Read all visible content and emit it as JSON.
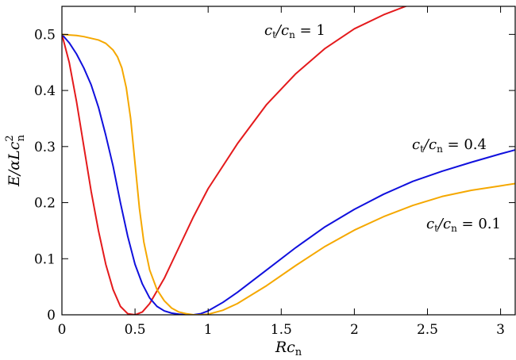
{
  "chart_data": {
    "type": "line",
    "xlabel_main": "R",
    "xlabel_sub": "c",
    "xlabel_subscript": "n",
    "ylabel_parts": {
      "lead": "E/αLc",
      "sup": "2",
      "sub": "n"
    },
    "xlim": [
      0,
      3.1
    ],
    "ylim": [
      0,
      0.55
    ],
    "xticks": [
      0,
      0.5,
      1,
      1.5,
      2,
      2.5,
      3
    ],
    "xtick_labels": [
      "0",
      "0.5",
      "1",
      "1.5",
      "2",
      "2.5",
      "3"
    ],
    "yticks": [
      0,
      0.1,
      0.2,
      0.3,
      0.4,
      0.5
    ],
    "ytick_labels": [
      "0",
      "0.1",
      "0.2",
      "0.3",
      "0.4",
      "0.5"
    ],
    "grid": false,
    "series": [
      {
        "name": "ct/cn = 1",
        "color": "#e41a1c",
        "x": [
          0,
          0.05,
          0.1,
          0.15,
          0.2,
          0.25,
          0.3,
          0.35,
          0.4,
          0.45,
          0.5,
          0.55,
          0.6,
          0.7,
          0.8,
          0.9,
          1.0,
          1.2,
          1.4,
          1.6,
          1.8,
          2.0,
          2.2,
          2.4,
          2.6
        ],
        "y": [
          0.5,
          0.45,
          0.38,
          0.3,
          0.22,
          0.15,
          0.09,
          0.045,
          0.015,
          0.002,
          0.0,
          0.005,
          0.02,
          0.065,
          0.12,
          0.175,
          0.225,
          0.305,
          0.375,
          0.43,
          0.475,
          0.51,
          0.535,
          0.555,
          0.57
        ]
      },
      {
        "name": "ct/cn = 0.4",
        "color": "#1010dd",
        "x": [
          0,
          0.05,
          0.1,
          0.15,
          0.2,
          0.25,
          0.3,
          0.35,
          0.4,
          0.45,
          0.5,
          0.55,
          0.6,
          0.65,
          0.7,
          0.75,
          0.8,
          0.85,
          0.9,
          0.95,
          1.0,
          1.1,
          1.2,
          1.4,
          1.6,
          1.8,
          2.0,
          2.2,
          2.4,
          2.6,
          2.8,
          3.0,
          3.1
        ],
        "y": [
          0.5,
          0.485,
          0.465,
          0.44,
          0.41,
          0.37,
          0.32,
          0.265,
          0.2,
          0.14,
          0.09,
          0.055,
          0.03,
          0.015,
          0.007,
          0.003,
          0.001,
          0.0,
          0.0,
          0.002,
          0.007,
          0.022,
          0.04,
          0.08,
          0.12,
          0.157,
          0.188,
          0.215,
          0.238,
          0.256,
          0.272,
          0.287,
          0.294
        ]
      },
      {
        "name": "ct/cn = 0.1",
        "color": "#f5a800",
        "x": [
          0,
          0.05,
          0.1,
          0.15,
          0.2,
          0.25,
          0.3,
          0.35,
          0.38,
          0.41,
          0.44,
          0.47,
          0.5,
          0.53,
          0.56,
          0.6,
          0.65,
          0.7,
          0.75,
          0.8,
          0.85,
          0.9,
          0.95,
          1.0,
          1.1,
          1.2,
          1.4,
          1.6,
          1.8,
          2.0,
          2.2,
          2.4,
          2.6,
          2.8,
          3.0,
          3.1
        ],
        "y": [
          0.5,
          0.499,
          0.498,
          0.496,
          0.493,
          0.49,
          0.484,
          0.472,
          0.46,
          0.44,
          0.405,
          0.35,
          0.27,
          0.19,
          0.13,
          0.08,
          0.045,
          0.025,
          0.012,
          0.005,
          0.002,
          0.0,
          0.0,
          0.001,
          0.008,
          0.02,
          0.052,
          0.088,
          0.122,
          0.151,
          0.175,
          0.195,
          0.211,
          0.222,
          0.23,
          0.234
        ]
      }
    ],
    "annotations": [
      {
        "series": 0,
        "text_a": "c",
        "sub_a": "t",
        "text_b": "/c",
        "sub_b": "n",
        "text_c": " = 1"
      },
      {
        "series": 1,
        "text_a": "c",
        "sub_a": "t",
        "text_b": "/c",
        "sub_b": "n",
        "text_c": " = 0.4"
      },
      {
        "series": 2,
        "text_a": "c",
        "sub_a": "t",
        "text_b": "/c",
        "sub_b": "n",
        "text_c": " = 0.1"
      }
    ]
  }
}
